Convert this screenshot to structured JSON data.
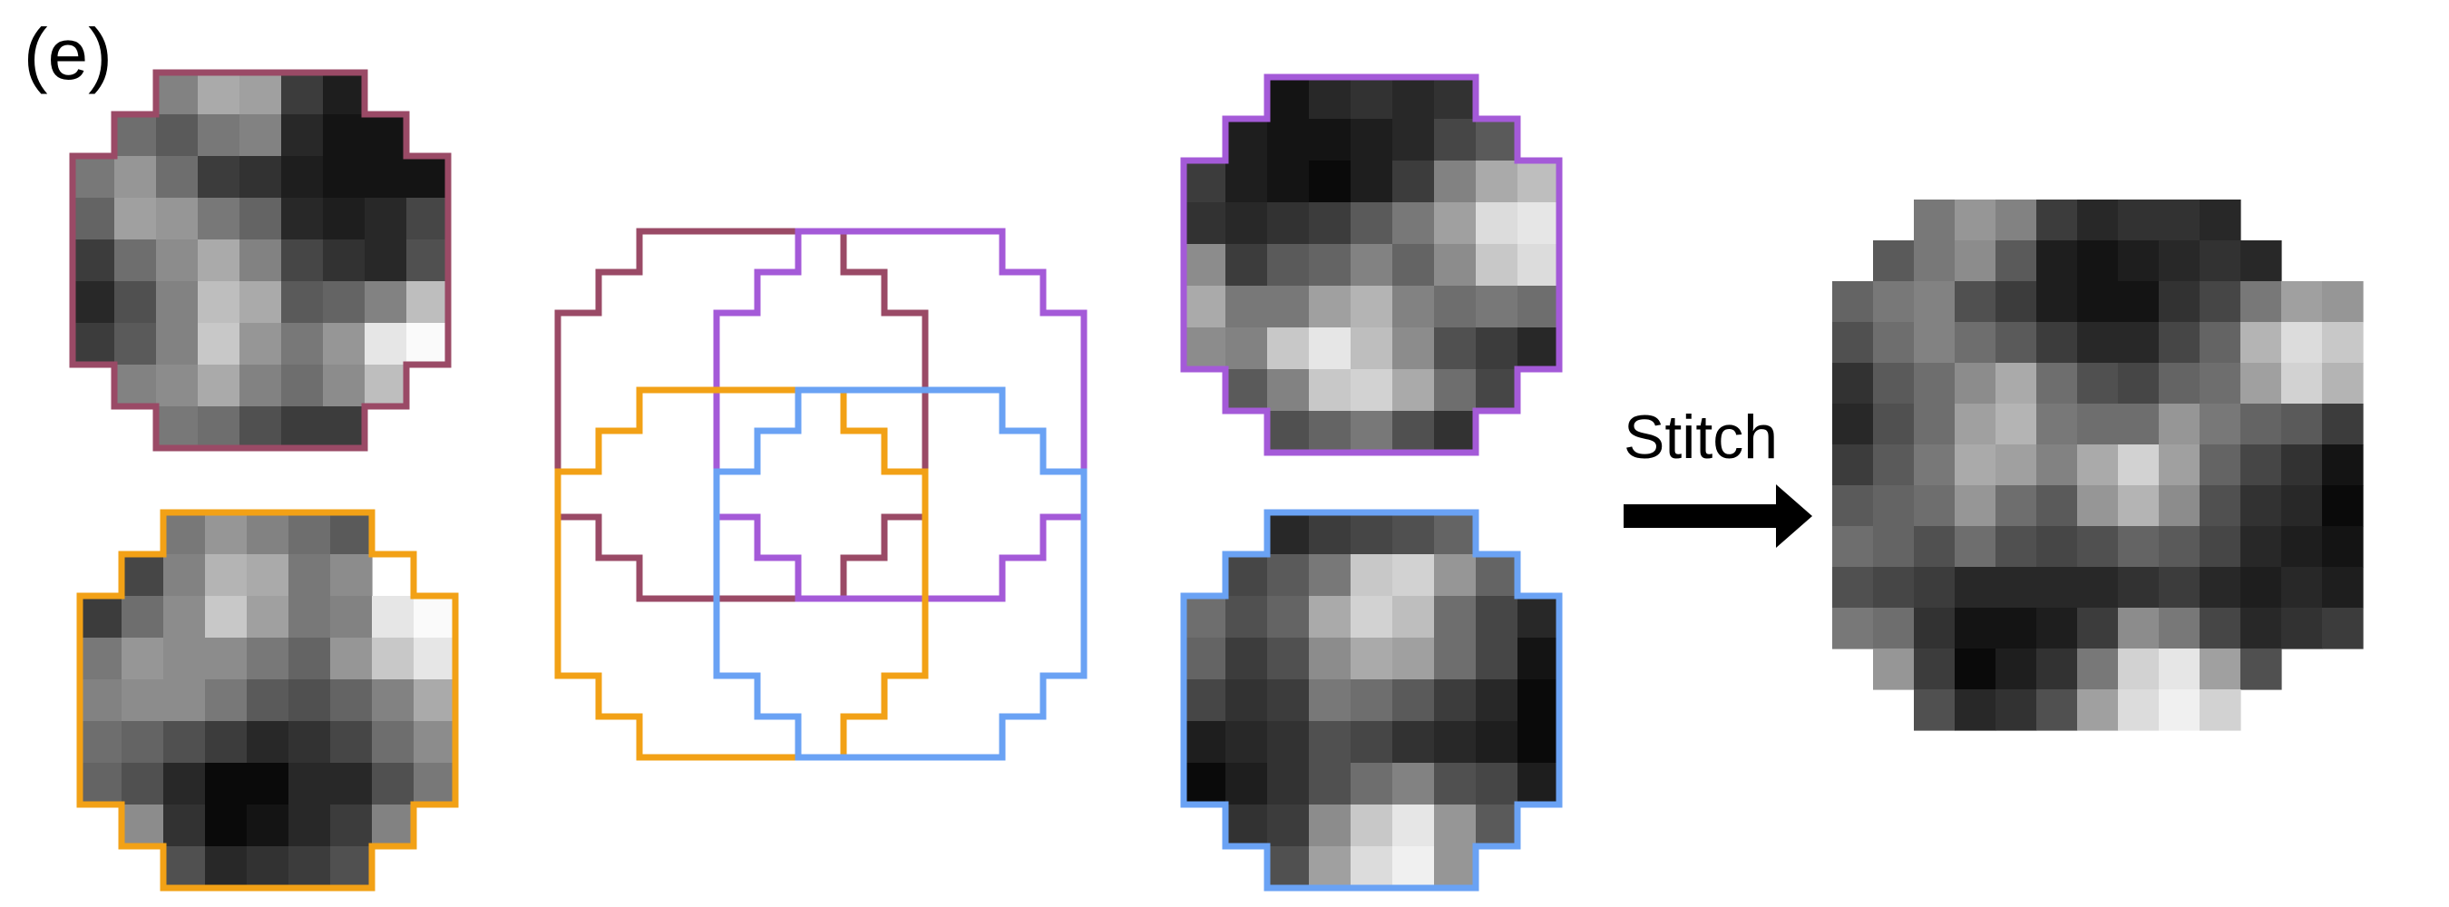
{
  "figure": {
    "panel_label": "(e)",
    "stitch_label": "Stitch"
  },
  "colors": {
    "maroon": "#9a4a66",
    "purple": "#a45ad8",
    "orange": "#f2a116",
    "blue": "#6aa2f4",
    "arrow": "#000000"
  },
  "patches": [
    {
      "name": "patch-maroon",
      "color": "maroon",
      "rows": [
        [
          null,
          null,
          null,
          null,
          null,
          null,
          null,
          null,
          null,
          null
        ],
        [
          null,
          null,
          130,
          170,
          160,
          60,
          30,
          null,
          null,
          null
        ],
        [
          null,
          110,
          90,
          120,
          130,
          40,
          20,
          20,
          null,
          null
        ],
        [
          120,
          150,
          110,
          60,
          50,
          30,
          20,
          20,
          20,
          null
        ],
        [
          100,
          160,
          150,
          120,
          100,
          40,
          30,
          40,
          70,
          null
        ],
        [
          60,
          110,
          140,
          170,
          130,
          70,
          50,
          40,
          80,
          null
        ],
        [
          40,
          80,
          130,
          190,
          170,
          90,
          100,
          130,
          190,
          null
        ],
        [
          60,
          90,
          130,
          200,
          150,
          120,
          150,
          230,
          250,
          null
        ],
        [
          null,
          130,
          140,
          170,
          130,
          110,
          140,
          190,
          null,
          null
        ],
        [
          null,
          null,
          120,
          110,
          80,
          60,
          60,
          null,
          null,
          null
        ]
      ]
    },
    {
      "name": "patch-purple",
      "color": "purple",
      "rows": [
        [
          null,
          null,
          null,
          null,
          null,
          null,
          null,
          null,
          null,
          null
        ],
        [
          null,
          null,
          20,
          40,
          50,
          40,
          50,
          null,
          null,
          null
        ],
        [
          null,
          30,
          20,
          20,
          30,
          40,
          70,
          90,
          null,
          null
        ],
        [
          60,
          30,
          20,
          10,
          30,
          60,
          130,
          170,
          190,
          null
        ],
        [
          50,
          40,
          50,
          60,
          90,
          120,
          160,
          220,
          230,
          null
        ],
        [
          140,
          60,
          90,
          100,
          130,
          100,
          140,
          200,
          220,
          null
        ],
        [
          170,
          120,
          120,
          160,
          180,
          130,
          110,
          120,
          110,
          null
        ],
        [
          140,
          130,
          200,
          230,
          190,
          140,
          80,
          60,
          40,
          null
        ],
        [
          null,
          90,
          130,
          200,
          210,
          170,
          110,
          70,
          null,
          null
        ],
        [
          null,
          null,
          80,
          100,
          120,
          80,
          50,
          null,
          null,
          null
        ]
      ]
    },
    {
      "name": "patch-orange",
      "color": "orange",
      "rows": [
        [
          null,
          null,
          null,
          null,
          null,
          null,
          null,
          null,
          null,
          null
        ],
        [
          null,
          null,
          120,
          150,
          130,
          110,
          90,
          null,
          null,
          null
        ],
        [
          null,
          70,
          130,
          180,
          170,
          120,
          140,
          null,
          null,
          null
        ],
        [
          60,
          110,
          140,
          200,
          160,
          120,
          130,
          230,
          250,
          null
        ],
        [
          120,
          150,
          140,
          140,
          120,
          100,
          150,
          200,
          230,
          null
        ],
        [
          130,
          140,
          140,
          120,
          90,
          80,
          100,
          130,
          170,
          null
        ],
        [
          110,
          100,
          80,
          60,
          40,
          50,
          70,
          110,
          140,
          null
        ],
        [
          100,
          80,
          40,
          10,
          10,
          40,
          40,
          80,
          120,
          null
        ],
        [
          null,
          140,
          50,
          10,
          20,
          40,
          60,
          130,
          null,
          null
        ],
        [
          null,
          null,
          80,
          40,
          50,
          60,
          80,
          null,
          null,
          null
        ]
      ]
    },
    {
      "name": "patch-blue",
      "color": "blue",
      "rows": [
        [
          null,
          null,
          null,
          null,
          null,
          null,
          null,
          null,
          null,
          null
        ],
        [
          null,
          null,
          40,
          60,
          70,
          80,
          100,
          null,
          null,
          null
        ],
        [
          null,
          70,
          90,
          120,
          200,
          210,
          150,
          100,
          null,
          null
        ],
        [
          110,
          80,
          100,
          170,
          210,
          190,
          110,
          70,
          40,
          null
        ],
        [
          100,
          60,
          80,
          140,
          170,
          160,
          110,
          70,
          20,
          null
        ],
        [
          70,
          50,
          60,
          120,
          110,
          90,
          60,
          40,
          10,
          null
        ],
        [
          30,
          40,
          50,
          80,
          70,
          50,
          40,
          30,
          10,
          null
        ],
        [
          10,
          30,
          50,
          80,
          110,
          130,
          80,
          70,
          30,
          null
        ],
        [
          null,
          50,
          60,
          140,
          200,
          230,
          150,
          90,
          null,
          null
        ],
        [
          null,
          null,
          80,
          160,
          220,
          240,
          150,
          null,
          null,
          null
        ]
      ]
    }
  ],
  "stitched": {
    "name": "stitched-image",
    "rows": [
      [
        null,
        null,
        120,
        150,
        130,
        60,
        40,
        50,
        50,
        40,
        null,
        null,
        null
      ],
      [
        null,
        90,
        120,
        140,
        90,
        30,
        20,
        30,
        40,
        50,
        40,
        null,
        null
      ],
      [
        100,
        120,
        130,
        80,
        60,
        30,
        20,
        20,
        50,
        70,
        120,
        160,
        150
      ],
      [
        80,
        110,
        130,
        110,
        90,
        60,
        40,
        40,
        70,
        100,
        180,
        220,
        200
      ],
      [
        50,
        90,
        110,
        140,
        170,
        110,
        80,
        70,
        100,
        110,
        160,
        210,
        180
      ],
      [
        40,
        80,
        110,
        160,
        180,
        120,
        110,
        110,
        150,
        120,
        100,
        90,
        60
      ],
      [
        60,
        90,
        120,
        170,
        160,
        130,
        170,
        210,
        160,
        100,
        70,
        50,
        20
      ],
      [
        90,
        100,
        110,
        150,
        110,
        90,
        150,
        180,
        140,
        80,
        50,
        40,
        10
      ],
      [
        110,
        100,
        80,
        110,
        80,
        70,
        80,
        100,
        90,
        70,
        40,
        30,
        20
      ],
      [
        80,
        70,
        60,
        40,
        40,
        40,
        40,
        50,
        60,
        40,
        30,
        40,
        30
      ],
      [
        120,
        110,
        50,
        20,
        20,
        30,
        60,
        140,
        120,
        70,
        40,
        50,
        60
      ],
      [
        null,
        150,
        60,
        10,
        30,
        50,
        120,
        210,
        230,
        160,
        80,
        null,
        null
      ],
      [
        null,
        null,
        80,
        40,
        50,
        80,
        160,
        220,
        240,
        210,
        null,
        null,
        null
      ]
    ]
  }
}
